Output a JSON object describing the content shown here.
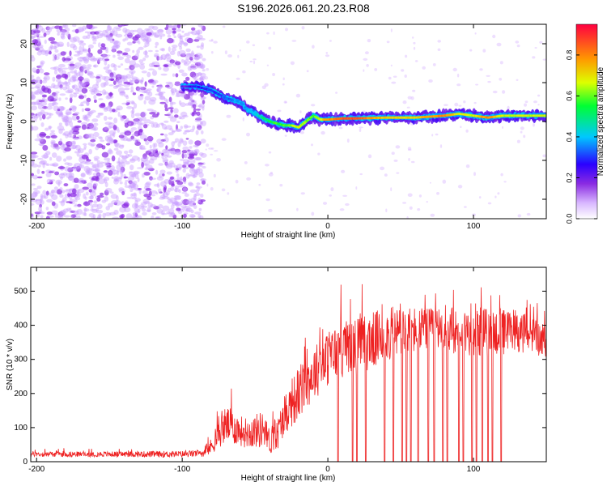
{
  "title": "S196.2026.061.20.23.R08",
  "colors": {
    "snr_line": "#ee2222",
    "spectrogram_low": "#a64dff",
    "spectrogram_mid": "#00cc88",
    "spectrogram_high": "#ff0033"
  },
  "chart_data": [
    {
      "type": "heatmap",
      "title": "",
      "xlabel": "Height of straight line (km)",
      "ylabel": "Frequency (Hz)",
      "xlim": [
        -204,
        150
      ],
      "ylim": [
        -25,
        25
      ],
      "xticks": [
        -200,
        -100,
        0,
        100
      ],
      "yticks": [
        -20,
        -10,
        0,
        10,
        20
      ],
      "xtick_labels": [
        "-200",
        "-100",
        "0",
        "100"
      ],
      "ytick_labels": [
        "-20",
        "-10",
        "0",
        "10",
        "20"
      ],
      "colorbar": {
        "label": "Normalized spectral amplitude",
        "range": [
          0.0,
          0.95
        ],
        "ticks": [
          0.0,
          0.2,
          0.4,
          0.6,
          0.8
        ],
        "tick_labels": [
          "0.0",
          "0.2",
          "0.4",
          "0.6",
          "0.8"
        ],
        "colormap": "rainbow (white-violet-blue-cyan-green-yellow-red)"
      },
      "noise_region": {
        "x_range": [
          -204,
          -85
        ],
        "freq_range": [
          -25,
          25
        ],
        "amplitude": 0.1
      },
      "ridge": {
        "description": "dominant frequency ridge of the signal",
        "x": [
          -100,
          -90,
          -80,
          -70,
          -60,
          -55,
          -50,
          -45,
          -40,
          -35,
          -30,
          -25,
          -20,
          -15,
          -10,
          -5,
          0,
          10,
          20,
          40,
          60,
          80,
          90,
          100,
          110,
          120,
          150
        ],
        "frequency": [
          9,
          9,
          8,
          6,
          5,
          3,
          2,
          1,
          0,
          -0.5,
          -1,
          -1,
          -1.5,
          0,
          1.5,
          0.5,
          0.5,
          0.8,
          0.8,
          1,
          1,
          1.5,
          2,
          1.5,
          1,
          1.5,
          1.5
        ],
        "amplitude": [
          0.2,
          0.3,
          0.3,
          0.35,
          0.4,
          0.4,
          0.45,
          0.5,
          0.55,
          0.6,
          0.6,
          0.65,
          0.7,
          0.65,
          0.6,
          0.7,
          0.8,
          0.9,
          0.9,
          0.75,
          0.75,
          0.85,
          0.7,
          0.7,
          0.85,
          0.7,
          0.7
        ]
      }
    },
    {
      "type": "line",
      "title": "",
      "xlabel": "Height of straight line (km)",
      "ylabel": "SNR (10 * v/v)",
      "xlim": [
        -204,
        150
      ],
      "ylim": [
        0,
        570
      ],
      "xticks": [
        -200,
        -100,
        0,
        100
      ],
      "yticks": [
        0,
        100,
        200,
        300,
        400,
        500
      ],
      "xtick_labels": [
        "-200",
        "-100",
        "0",
        "100"
      ],
      "ytick_labels": [
        "0",
        "100",
        "200",
        "300",
        "400",
        "500"
      ],
      "series": [
        {
          "name": "SNR",
          "envelope_x": [
            -204,
            -150,
            -100,
            -85,
            -80,
            -75,
            -70,
            -65,
            -60,
            -55,
            -50,
            -45,
            -40,
            -35,
            -30,
            -25,
            -20,
            -15,
            -10,
            -5,
            0,
            5,
            10,
            20,
            30,
            40,
            50,
            60,
            70,
            80,
            90,
            100,
            110,
            120,
            130,
            140,
            150
          ],
          "envelope_mean": [
            22,
            22,
            22,
            25,
            45,
            80,
            110,
            100,
            90,
            85,
            90,
            95,
            60,
            75,
            140,
            170,
            200,
            230,
            260,
            280,
            300,
            320,
            330,
            340,
            355,
            370,
            380,
            385,
            385,
            385,
            385,
            380,
            380,
            380,
            380,
            375,
            350
          ],
          "envelope_amplitude": [
            8,
            8,
            10,
            10,
            25,
            40,
            55,
            50,
            45,
            45,
            50,
            55,
            40,
            45,
            60,
            70,
            80,
            80,
            80,
            80,
            80,
            80,
            85,
            85,
            85,
            80,
            75,
            70,
            65,
            65,
            70,
            70,
            75,
            70,
            60,
            55,
            50
          ],
          "dropouts_x": [
            7,
            17,
            20,
            26,
            39,
            45,
            51,
            54,
            57,
            62,
            69,
            73,
            79,
            82,
            90,
            93,
            99,
            102,
            106,
            110,
            113,
            119
          ]
        }
      ]
    }
  ]
}
